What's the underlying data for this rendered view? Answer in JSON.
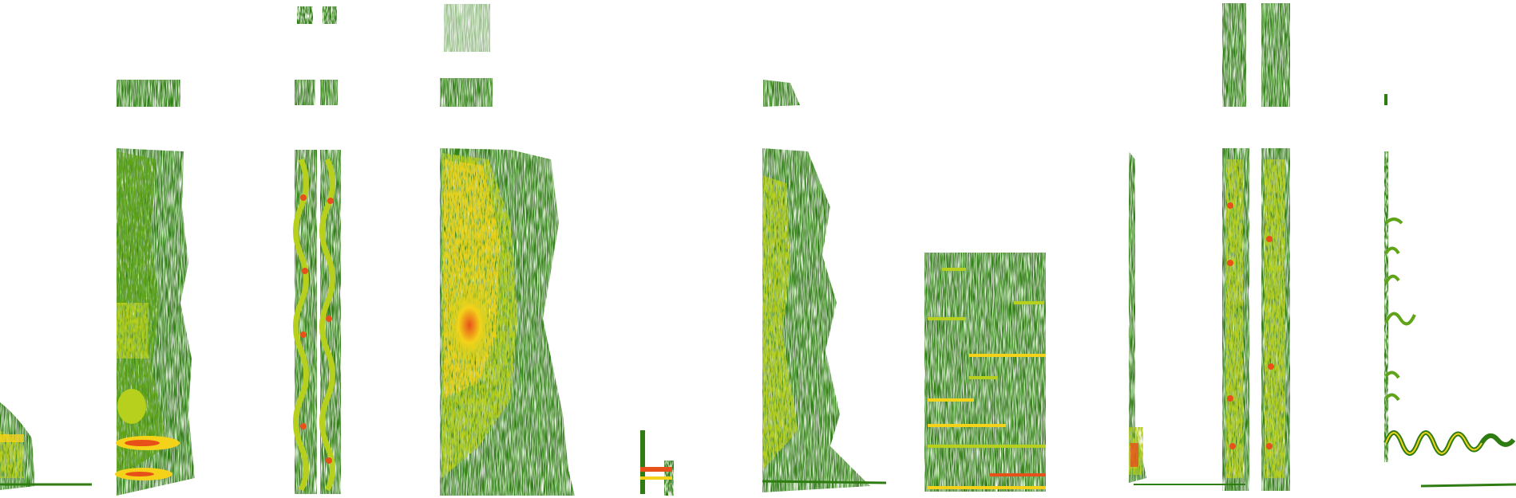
{
  "image": {
    "kind": "spectrogram",
    "background": "#ffffff",
    "palette": {
      "low": "#2f7d12",
      "mid_low": "#5fa418",
      "mid": "#b7cf1d",
      "high": "#f4d21a",
      "peak": "#e8501a"
    },
    "sound_events": [
      {
        "name": "soft-low-burst"
      },
      {
        "name": "harmonic-stack"
      },
      {
        "name": "paired-modulated-calls"
      },
      {
        "name": "broadband-noise"
      },
      {
        "name": "short-low-tone"
      },
      {
        "name": "noisy-decay"
      },
      {
        "name": "tonal-steps-in-noise"
      },
      {
        "name": "thin-vertical-click"
      },
      {
        "name": "paired-chirp-trains"
      },
      {
        "name": "warbling-whistle"
      }
    ]
  }
}
